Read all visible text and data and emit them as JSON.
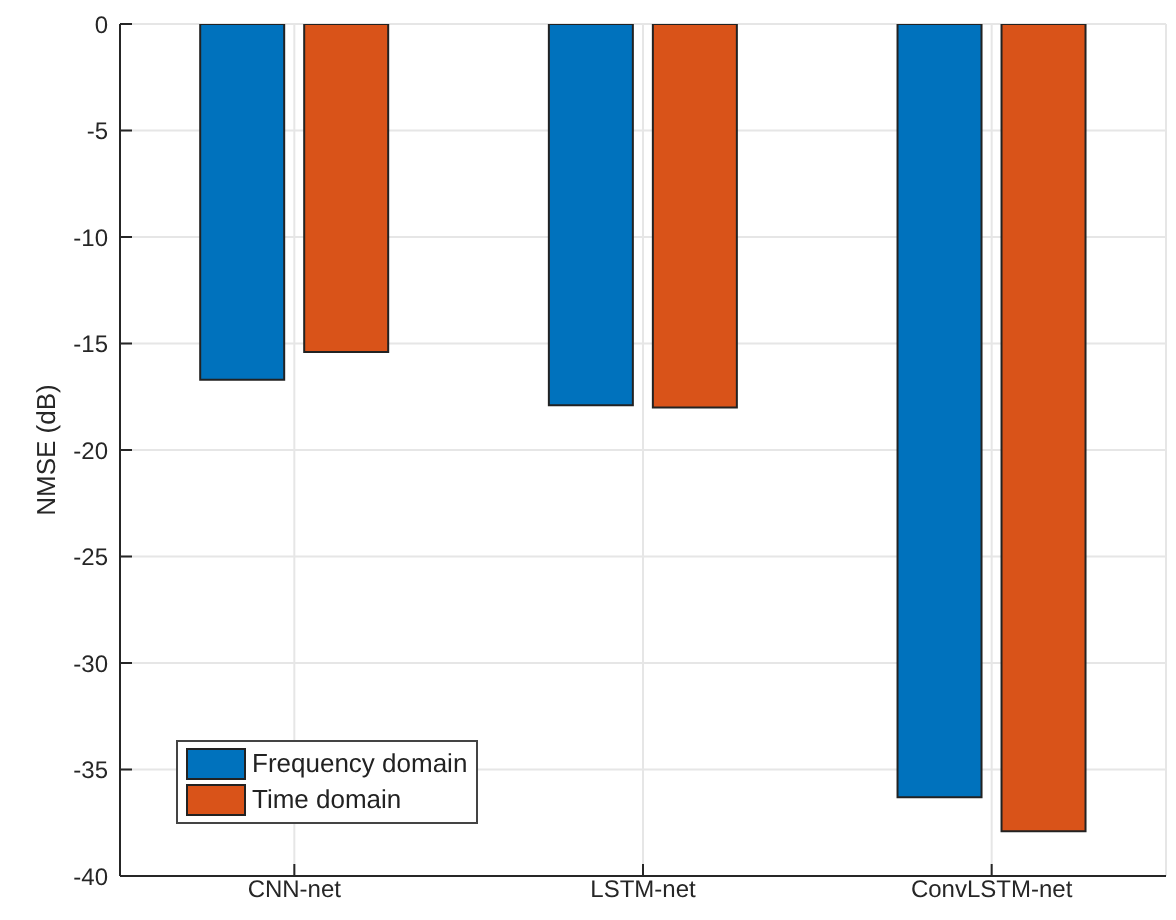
{
  "chart_data": {
    "type": "bar",
    "ylabel": "NMSE (dB)",
    "categories": [
      "CNN-net",
      "LSTM-net",
      "ConvLSTM-net"
    ],
    "series": [
      {
        "name": "Frequency domain",
        "color": "#0072bd",
        "values": [
          -16.7,
          -17.9,
          -36.3
        ]
      },
      {
        "name": "Time domain",
        "color": "#d95319",
        "values": [
          -15.4,
          -18.0,
          -37.9
        ]
      }
    ],
    "ylim": [
      -40,
      0
    ],
    "yticks": [
      -40,
      -35,
      -30,
      -25,
      -20,
      -15,
      -10,
      -5,
      0
    ],
    "grid": true,
    "legend": "bottom left"
  }
}
